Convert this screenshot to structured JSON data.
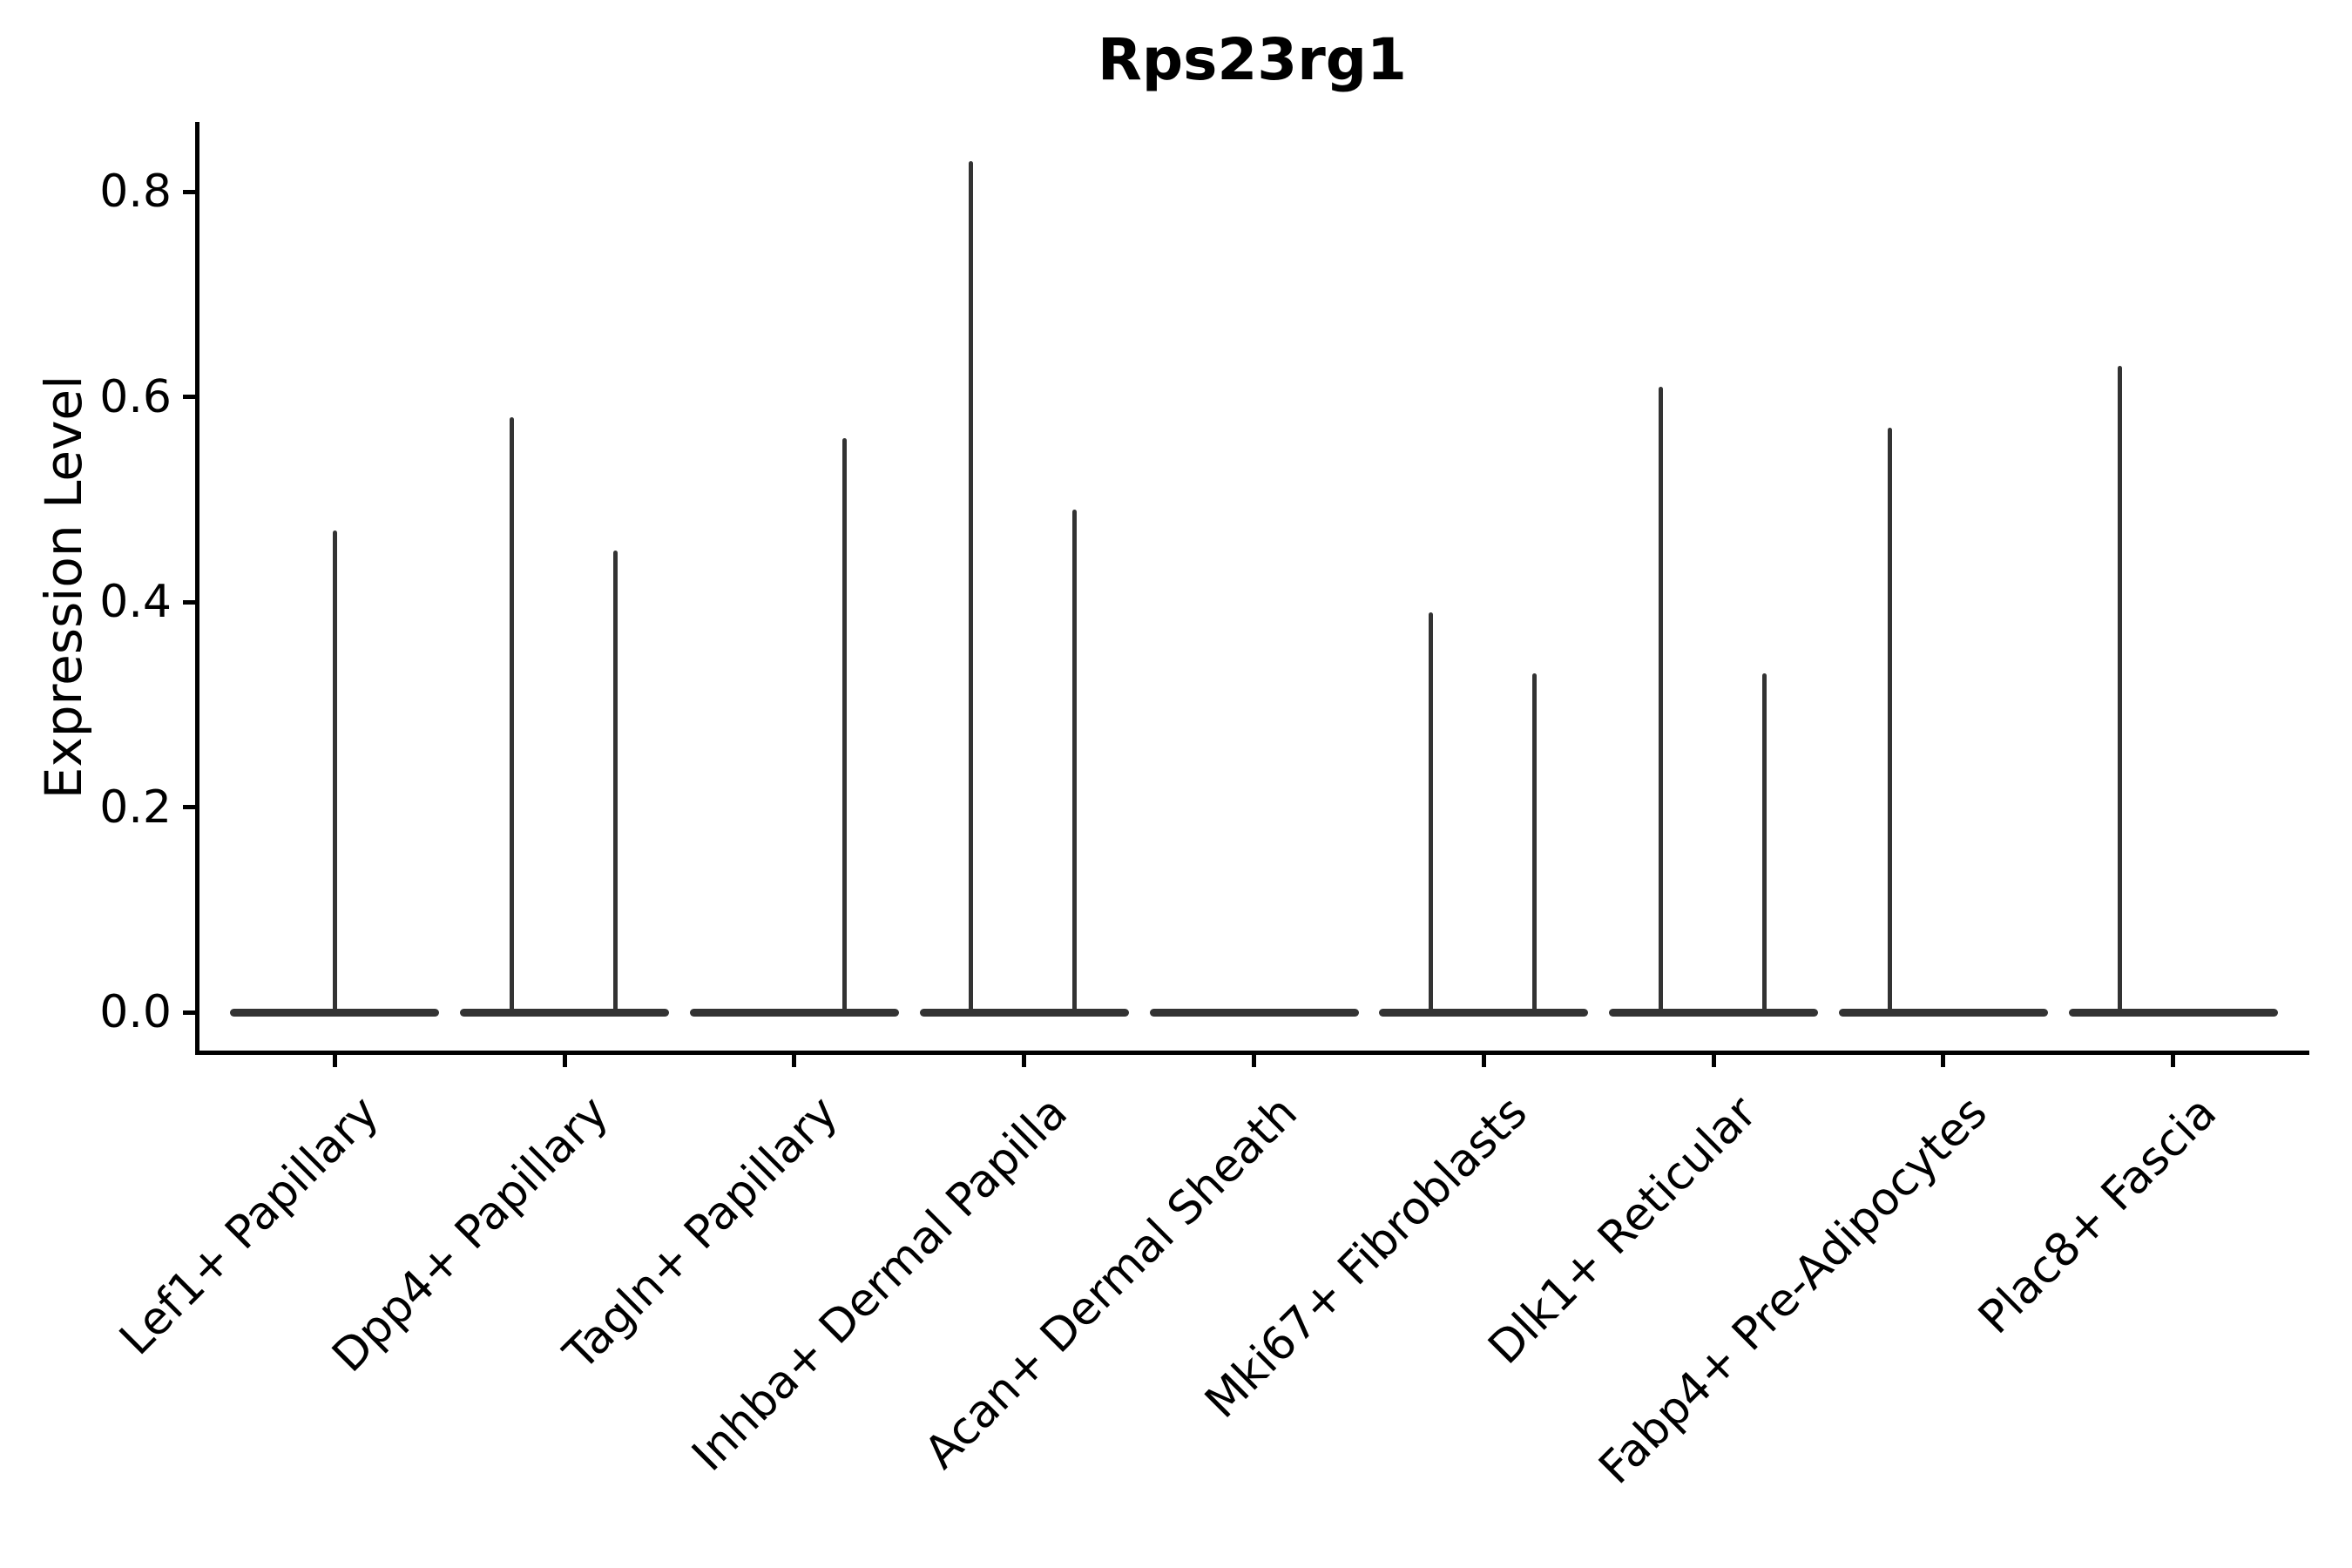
{
  "figure": {
    "title": "Rps23rg1",
    "background": "#ffffff"
  },
  "chart_data": {
    "type": "violin",
    "title": "Rps23rg1",
    "xlabel": "",
    "ylabel": "Expression Level",
    "grid": false,
    "legend": null,
    "ylim": [
      -0.04,
      0.87
    ],
    "y_ticks": [
      {
        "value": 0.0,
        "label": "0.0"
      },
      {
        "value": 0.2,
        "label": "0.2"
      },
      {
        "value": 0.4,
        "label": "0.4"
      },
      {
        "value": 0.6,
        "label": "0.6"
      },
      {
        "value": 0.8,
        "label": "0.8"
      }
    ],
    "colors": {
      "violin_stroke": "#333333",
      "axis": "#000000",
      "text": "#000000"
    },
    "categories": [
      "Lef1+ Papillary",
      "Dpp4+ Papillary",
      "Tagln+ Papillary",
      "Inhba+ Dermal Papilla",
      "Acan+ Dermal Sheath",
      "Mki67+ Fibroblasts",
      "Dlk1+ Reticular",
      "Fabp4+ Pre-Adipocytes",
      "Plac8+ Fascia"
    ],
    "violins": [
      {
        "category": "Lef1+ Papillary",
        "groups": [
          {
            "position": "center",
            "max_expression": 0.47
          }
        ]
      },
      {
        "category": "Dpp4+ Papillary",
        "groups": [
          {
            "position": "left",
            "max_expression": 0.58
          },
          {
            "position": "right",
            "max_expression": 0.45
          }
        ]
      },
      {
        "category": "Tagln+ Papillary",
        "groups": [
          {
            "position": "left",
            "max_expression": 0.0
          },
          {
            "position": "right",
            "max_expression": 0.56
          }
        ]
      },
      {
        "category": "Inhba+ Dermal Papilla",
        "groups": [
          {
            "position": "left",
            "max_expression": 0.83
          },
          {
            "position": "right",
            "max_expression": 0.49
          }
        ]
      },
      {
        "category": "Acan+ Dermal Sheath",
        "groups": [
          {
            "position": "center",
            "max_expression": 0.0
          }
        ]
      },
      {
        "category": "Mki67+ Fibroblasts",
        "groups": [
          {
            "position": "left",
            "max_expression": 0.39
          },
          {
            "position": "right",
            "max_expression": 0.33
          }
        ]
      },
      {
        "category": "Dlk1+ Reticular",
        "groups": [
          {
            "position": "left",
            "max_expression": 0.61
          },
          {
            "position": "right",
            "max_expression": 0.33
          }
        ]
      },
      {
        "category": "Fabp4+ Pre-Adipocytes",
        "groups": [
          {
            "position": "left",
            "max_expression": 0.57
          },
          {
            "position": "right",
            "max_expression": 0.0
          }
        ]
      },
      {
        "category": "Plac8+ Fascia",
        "groups": [
          {
            "position": "left",
            "max_expression": 0.63
          },
          {
            "position": "right",
            "max_expression": 0.0
          }
        ]
      }
    ]
  }
}
